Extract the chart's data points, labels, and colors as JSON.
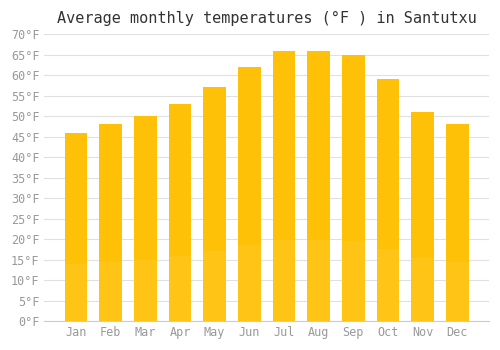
{
  "title": "Average monthly temperatures (°F ) in Santutxu",
  "months": [
    "Jan",
    "Feb",
    "Mar",
    "Apr",
    "May",
    "Jun",
    "Jul",
    "Aug",
    "Sep",
    "Oct",
    "Nov",
    "Dec"
  ],
  "values": [
    46,
    48,
    50,
    53,
    57,
    62,
    66,
    66,
    65,
    59,
    51,
    48
  ],
  "bar_color_top": "#FFC107",
  "bar_color_bottom": "#FFD966",
  "ylim": [
    0,
    70
  ],
  "yticks": [
    0,
    5,
    10,
    15,
    20,
    25,
    30,
    35,
    40,
    45,
    50,
    55,
    60,
    65,
    70
  ],
  "background_color": "#ffffff",
  "grid_color": "#e0e0e0",
  "title_fontsize": 11,
  "tick_fontsize": 8.5
}
